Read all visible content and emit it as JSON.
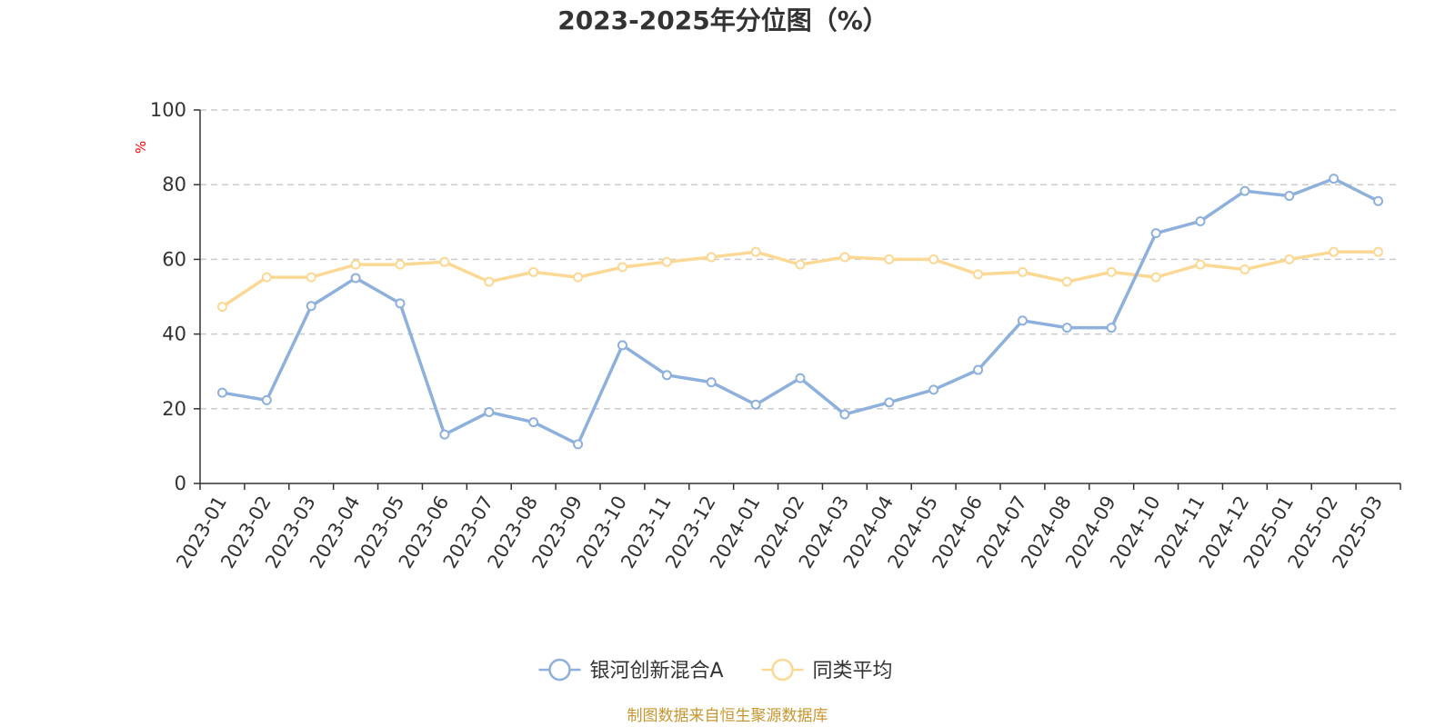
{
  "chart_data": {
    "type": "line",
    "title": "2023-2025年分位图（%）",
    "ylabel": "%",
    "xlabel": "",
    "ylim": [
      0,
      100
    ],
    "yticks": [
      0,
      20,
      40,
      60,
      80,
      100
    ],
    "grid": true,
    "legend_position": "bottom-center",
    "categories": [
      "2023-01",
      "2023-02",
      "2023-03",
      "2023-04",
      "2023-05",
      "2023-06",
      "2023-07",
      "2023-08",
      "2023-09",
      "2023-10",
      "2023-11",
      "2023-12",
      "2024-01",
      "2024-02",
      "2024-03",
      "2024-04",
      "2024-05",
      "2024-06",
      "2024-07",
      "2024-08",
      "2024-09",
      "2024-10",
      "2024-11",
      "2024-12",
      "2025-01",
      "2025-02",
      "2025-03"
    ],
    "series": [
      {
        "name": "银河创新混合A",
        "color": "#8eb0dc",
        "values": [
          24.3,
          22.3,
          47.5,
          55.0,
          48.2,
          13.1,
          19.1,
          16.4,
          10.5,
          37.0,
          29.0,
          27.1,
          21.1,
          28.2,
          18.5,
          21.7,
          25.1,
          30.4,
          43.6,
          41.7,
          41.7,
          67.0,
          70.2,
          78.3,
          77.0,
          81.6,
          75.6
        ]
      },
      {
        "name": "同类平均",
        "color": "#fbd995",
        "values": [
          47.3,
          55.2,
          55.2,
          58.6,
          58.6,
          59.3,
          54.0,
          56.6,
          55.2,
          57.9,
          59.3,
          60.6,
          62.0,
          58.6,
          60.6,
          60.0,
          60.0,
          56.0,
          56.6,
          54.0,
          56.6,
          55.2,
          58.6,
          57.3,
          60.0,
          62.0,
          62.0
        ]
      }
    ],
    "axis_color": "#333333",
    "grid_color": "#cccccc",
    "unit_color": "#ff0000"
  },
  "source": {
    "text": "制图数据来自恒生聚源数据库",
    "color": "#c8962e"
  }
}
